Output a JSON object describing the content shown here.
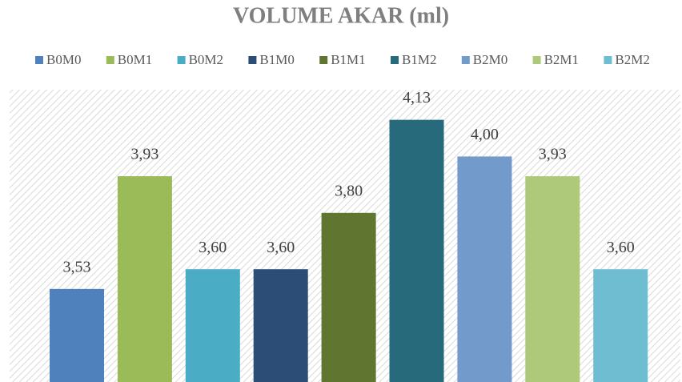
{
  "chart_data": {
    "type": "bar",
    "title": "VOLUME AKAR (ml)",
    "categories": [
      null
    ],
    "series": [
      {
        "name": "B0M0",
        "color": "#4f81bd",
        "values": [
          3.53
        ],
        "value_labels": [
          "3,53"
        ]
      },
      {
        "name": "B0M1",
        "color": "#9bbb59",
        "values": [
          3.93
        ],
        "value_labels": [
          "3,93"
        ]
      },
      {
        "name": "B0M2",
        "color": "#4bacc6",
        "values": [
          3.6
        ],
        "value_labels": [
          "3,60"
        ]
      },
      {
        "name": "B1M0",
        "color": "#2c4d75",
        "values": [
          3.6
        ],
        "value_labels": [
          "3,60"
        ]
      },
      {
        "name": "B1M1",
        "color": "#5f7530",
        "values": [
          3.8
        ],
        "value_labels": [
          "3,80"
        ]
      },
      {
        "name": "B1M2",
        "color": "#276a7c",
        "values": [
          4.13
        ],
        "value_labels": [
          "4,13"
        ]
      },
      {
        "name": "B2M0",
        "color": "#729aca",
        "values": [
          4.0
        ],
        "value_labels": [
          "4,00"
        ]
      },
      {
        "name": "B2M1",
        "color": "#afc97a",
        "values": [
          3.93
        ],
        "value_labels": [
          "3,93"
        ]
      },
      {
        "name": "B2M2",
        "color": "#6fbdd1",
        "values": [
          3.6
        ],
        "value_labels": [
          "3,60"
        ]
      }
    ],
    "ylim": [
      3.2,
      4.2
    ],
    "legend": "top"
  }
}
